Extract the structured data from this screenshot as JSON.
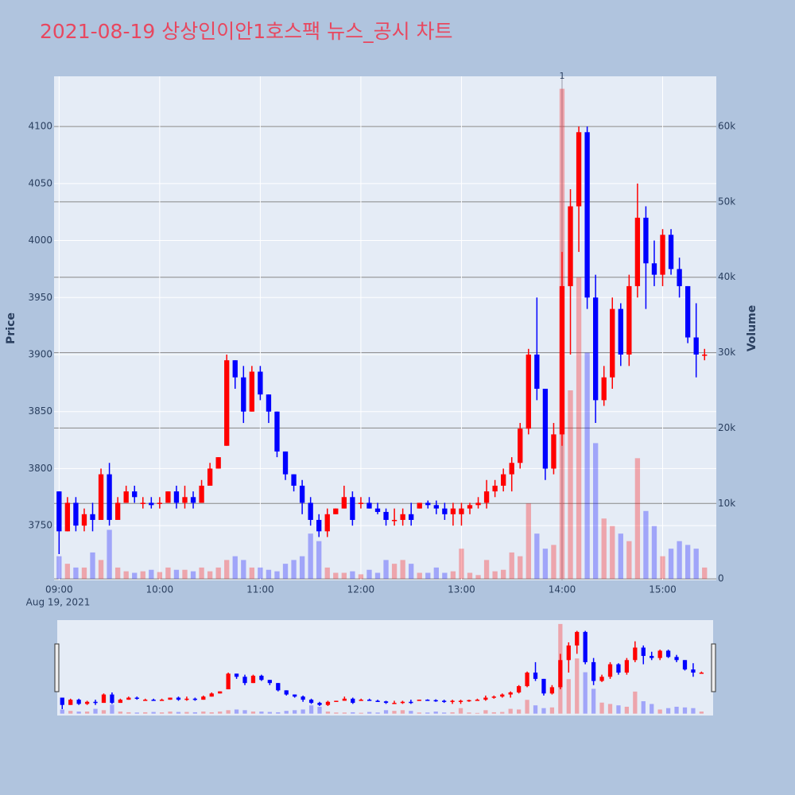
{
  "chart_data": {
    "type": "candlestick",
    "title": "2021-08-19 상상인이안1호스팩 뉴스_공시 차트",
    "y_title": "Price",
    "y2_title": "Volume",
    "x_date_label": "Aug 19, 2021",
    "increasing_color": "#ff0000",
    "decreasing_color": "#0000ff",
    "x": [
      "09:00",
      "09:05",
      "09:10",
      "09:15",
      "09:20",
      "09:25",
      "09:30",
      "09:35",
      "09:40",
      "09:45",
      "09:50",
      "09:55",
      "10:00",
      "10:05",
      "10:10",
      "10:15",
      "10:20",
      "10:25",
      "10:30",
      "10:35",
      "10:40",
      "10:45",
      "10:50",
      "10:55",
      "11:00",
      "11:05",
      "11:10",
      "11:15",
      "11:20",
      "11:25",
      "11:30",
      "11:35",
      "11:40",
      "11:45",
      "11:50",
      "11:55",
      "12:00",
      "12:05",
      "12:10",
      "12:15",
      "12:20",
      "12:25",
      "12:30",
      "12:35",
      "12:40",
      "12:45",
      "12:50",
      "12:55",
      "13:00",
      "13:05",
      "13:10",
      "13:15",
      "13:20",
      "13:25",
      "13:30",
      "13:35",
      "13:40",
      "13:45",
      "13:50",
      "13:55",
      "14:00",
      "14:05",
      "14:10",
      "14:15",
      "14:20",
      "14:25",
      "14:30",
      "14:35",
      "14:40",
      "14:45",
      "14:50",
      "14:55",
      "15:00",
      "15:05",
      "15:10",
      "15:15",
      "15:20",
      "15:25"
    ],
    "open": [
      3780,
      3745,
      3770,
      3750,
      3760,
      3755,
      3795,
      3755,
      3770,
      3780,
      3770,
      3770,
      3770,
      3770,
      3780,
      3770,
      3775,
      3770,
      3785,
      3800,
      3820,
      3895,
      3880,
      3850,
      3885,
      3865,
      3850,
      3815,
      3795,
      3785,
      3770,
      3755,
      3745,
      3760,
      3765,
      3775,
      3770,
      3770,
      3765,
      3762,
      3755,
      3755,
      3760,
      3765,
      3770,
      3768,
      3765,
      3760,
      3760,
      3765,
      3768,
      3770,
      3780,
      3785,
      3795,
      3805,
      3835,
      3900,
      3870,
      3800,
      3830,
      3960,
      4030,
      4095,
      3950,
      3860,
      3880,
      3940,
      3900,
      3960,
      4020,
      3980,
      3970,
      4005,
      3975,
      3960,
      3915,
      3900
    ],
    "high": [
      3780,
      3775,
      3775,
      3765,
      3770,
      3800,
      3805,
      3775,
      3785,
      3785,
      3775,
      3775,
      3775,
      3780,
      3785,
      3785,
      3780,
      3790,
      3805,
      3810,
      3900,
      3895,
      3890,
      3890,
      3890,
      3865,
      3850,
      3815,
      3795,
      3790,
      3775,
      3760,
      3765,
      3765,
      3785,
      3780,
      3775,
      3775,
      3770,
      3765,
      3765,
      3765,
      3770,
      3770,
      3772,
      3772,
      3770,
      3770,
      3770,
      3770,
      3775,
      3790,
      3790,
      3800,
      3810,
      3840,
      3905,
      3950,
      3870,
      3840,
      3990,
      4045,
      4100,
      4100,
      3970,
      3890,
      3950,
      3945,
      3970,
      4050,
      4030,
      4000,
      4010,
      4010,
      3985,
      3960,
      3945,
      3905
    ],
    "low": [
      3725,
      3745,
      3745,
      3745,
      3745,
      3755,
      3750,
      3755,
      3770,
      3770,
      3765,
      3765,
      3765,
      3770,
      3765,
      3765,
      3765,
      3770,
      3785,
      3800,
      3820,
      3870,
      3840,
      3850,
      3860,
      3840,
      3810,
      3790,
      3780,
      3760,
      3750,
      3740,
      3740,
      3760,
      3765,
      3750,
      3765,
      3765,
      3760,
      3750,
      3750,
      3750,
      3750,
      3765,
      3765,
      3760,
      3755,
      3750,
      3750,
      3760,
      3765,
      3765,
      3775,
      3780,
      3780,
      3800,
      3830,
      3860,
      3790,
      3795,
      3820,
      3900,
      3990,
      3940,
      3840,
      3855,
      3870,
      3890,
      3890,
      3950,
      3940,
      3960,
      3960,
      3970,
      3950,
      3910,
      3880,
      3895
    ],
    "close": [
      3745,
      3770,
      3750,
      3760,
      3755,
      3795,
      3755,
      3770,
      3780,
      3775,
      3770,
      3768,
      3770,
      3780,
      3770,
      3775,
      3770,
      3785,
      3800,
      3810,
      3895,
      3880,
      3850,
      3885,
      3865,
      3850,
      3815,
      3795,
      3785,
      3770,
      3755,
      3745,
      3760,
      3765,
      3775,
      3755,
      3770,
      3765,
      3762,
      3755,
      3755,
      3760,
      3755,
      3770,
      3768,
      3765,
      3760,
      3765,
      3765,
      3768,
      3770,
      3780,
      3785,
      3795,
      3805,
      3835,
      3900,
      3870,
      3800,
      3830,
      3960,
      4030,
      4095,
      3950,
      3860,
      3880,
      3940,
      3900,
      3960,
      4020,
      3980,
      3970,
      4005,
      3975,
      3960,
      3915,
      3900,
      3900
    ],
    "volume": [
      3000,
      2000,
      1500,
      1500,
      3500,
      2500,
      6500,
      1500,
      1000,
      800,
      1000,
      1200,
      900,
      1500,
      1200,
      1200,
      1000,
      1500,
      1000,
      1500,
      2500,
      3000,
      2500,
      1500,
      1500,
      1200,
      1000,
      2000,
      2500,
      3000,
      6000,
      5000,
      1500,
      800,
      800,
      1000,
      600,
      1200,
      800,
      2500,
      2000,
      2500,
      2000,
      800,
      800,
      1500,
      800,
      1000,
      4000,
      800,
      500,
      2500,
      1000,
      1200,
      3500,
      3000,
      10000,
      6000,
      4000,
      4500,
      65000,
      25000,
      40000,
      30000,
      18000,
      8000,
      7000,
      6000,
      5000,
      16000,
      9000,
      7000,
      3000,
      4000,
      5000,
      4500,
      4000,
      1500
    ],
    "xlim": [
      "08:57",
      "15:32"
    ],
    "xticks": [
      "09:00",
      "10:00",
      "11:00",
      "12:00",
      "13:00",
      "14:00",
      "15:00"
    ],
    "ylim": [
      3702,
      4144
    ],
    "yticks": [
      3750,
      3800,
      3850,
      3900,
      3950,
      4000,
      4050,
      4100
    ],
    "y2lim": [
      -200,
      66650
    ],
    "y2ticks": [
      {
        "value": 0,
        "label": "0"
      },
      {
        "value": 10000,
        "label": "10k"
      },
      {
        "value": 20000,
        "label": "20k"
      },
      {
        "value": 30000,
        "label": "30k"
      },
      {
        "value": 40000,
        "label": "40k"
      },
      {
        "value": 50000,
        "label": "50k"
      },
      {
        "value": 60000,
        "label": "60k"
      }
    ],
    "annotations": [
      {
        "x": "14:00",
        "text": "1"
      }
    ]
  }
}
